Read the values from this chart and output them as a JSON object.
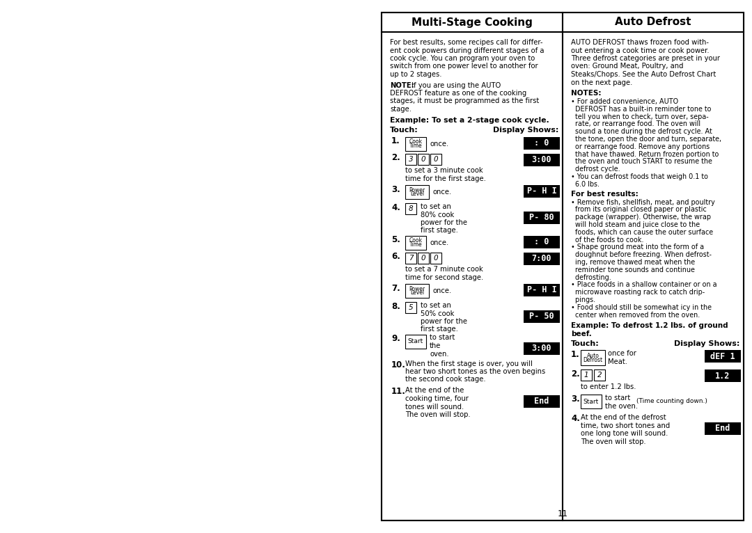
{
  "bg_color": "#ffffff",
  "page_number": "11",
  "left_title": "Multi-Stage Cooking",
  "right_title": "Auto Defrost",
  "left_intro": "For best results, some recipes call for differ-\nent cook powers during different stages of a\ncook cycle. You can program your oven to\nswitch from one power level to another for\nup to 2 stages.",
  "left_note_bold": "NOTE:",
  "left_note_rest": " If you are using the AUTO\nDEFROST feature as one of the cooking\nstages, it must be programmed as the first\nstage.",
  "left_example_header": "Example: To set a 2-stage cook cycle.",
  "touch_label": "Touch:",
  "display_label": "Display Shows:",
  "right_intro": "AUTO DEFROST thaws frozen food with-\nout entering a cook time or cook power.\nThree defrost categories are preset in your\noven: Ground Meat, Poultry, and\nSteaks/Chops. See the Auto Defrost Chart\non the next page.",
  "right_notes_header": "NOTES:",
  "right_note1": "• For added convenience, AUTO\n  DEFROST has a built-in reminder tone to\n  tell you when to check, turn over, sepa-\n  rate, or rearrange food. The oven will\n  sound a tone during the defrost cycle. At\n  the tone, open the door and turn, separate,\n  or rearrange food. Remove any portions\n  that have thawed. Return frozen portion to\n  the oven and touch START to resume the\n  defrost cycle.\n• You can defrost foods that weigh 0.1 to\n  6.0 lbs.",
  "right_best_header": "For best results:",
  "right_best": "• Remove fish, shellfish, meat, and poultry\n  from its original closed paper or plastic\n  package (wrapper). Otherwise, the wrap\n  will hold steam and juice close to the\n  foods, which can cause the outer surface\n  of the foods to cook.\n• Shape ground meat into the form of a\n  doughnut before freezing. When defrost-\n  ing, remove thawed meat when the\n  reminder tone sounds and continue\n  defrosting.\n• Place foods in a shallow container or on a\n  microwave roasting rack to catch drip-\n  pings.\n• Food should still be somewhat icy in the\n  center when removed from the oven.",
  "right_example_header1": "Example: To defrost 1.2 lbs. of ground",
  "right_example_header2": "beef.",
  "right_touch_label": "Touch:",
  "right_display_label": "Display Shows:",
  "fig_width": 10.8,
  "fig_height": 7.66,
  "dpi": 100
}
